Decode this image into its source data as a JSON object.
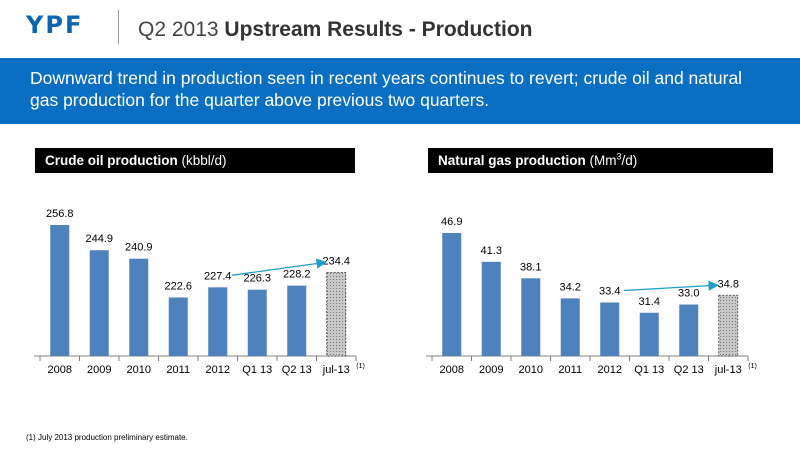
{
  "header": {
    "logo": "YPF",
    "title_prefix": "Q2 2013",
    "title_bold": "Upstream Results - Production"
  },
  "banner": {
    "text": "Downward trend in production seen in recent years continues to revert; crude oil and natural gas production for the quarter above previous two quarters."
  },
  "footnote": "(1) July 2013 production preliminary estimate.",
  "colors": {
    "bar": "#4f81bd",
    "estimate_bar": "#c0c0c0",
    "arrow": "#1f9ec9",
    "banner": "#0a6fc2"
  },
  "chart_data": [
    {
      "type": "bar",
      "title_bold": "Crude oil production",
      "title_unit": "(kbbl/d)",
      "categories": [
        "2008",
        "2009",
        "2010",
        "2011",
        "2012",
        "Q1 13",
        "Q2 13",
        "jul-13"
      ],
      "category_notes": [
        "",
        "",
        "",
        "",
        "",
        "",
        "",
        "(1)"
      ],
      "values": [
        256.8,
        244.9,
        240.9,
        222.6,
        227.4,
        226.3,
        228.2,
        234.4
      ],
      "value_labels": [
        "256.8",
        "244.9",
        "240.9",
        "222.6",
        "227.4",
        "226.3",
        "228.2",
        "234.4"
      ],
      "estimate_index": 7,
      "trend_arrow": {
        "from": "2012",
        "to": "jul-13"
      },
      "ylim": [
        195,
        260
      ]
    },
    {
      "type": "bar",
      "title_bold": "Natural gas production",
      "title_unit_pre": "(Mm",
      "title_unit_sup": "3",
      "title_unit_post": "/d)",
      "categories": [
        "2008",
        "2009",
        "2010",
        "2011",
        "2012",
        "Q1 13",
        "Q2 13",
        "jul-13"
      ],
      "category_notes": [
        "",
        "",
        "",
        "",
        "",
        "",
        "",
        "(1)"
      ],
      "values": [
        46.9,
        41.3,
        38.1,
        34.2,
        33.4,
        31.4,
        33.0,
        34.8
      ],
      "value_labels": [
        "46.9",
        "41.3",
        "38.1",
        "34.2",
        "33.4",
        "31.4",
        "33.0",
        "34.8"
      ],
      "estimate_index": 7,
      "trend_arrow": {
        "from": "2012",
        "to": "jul-13"
      },
      "ylim": [
        23,
        48
      ]
    }
  ]
}
